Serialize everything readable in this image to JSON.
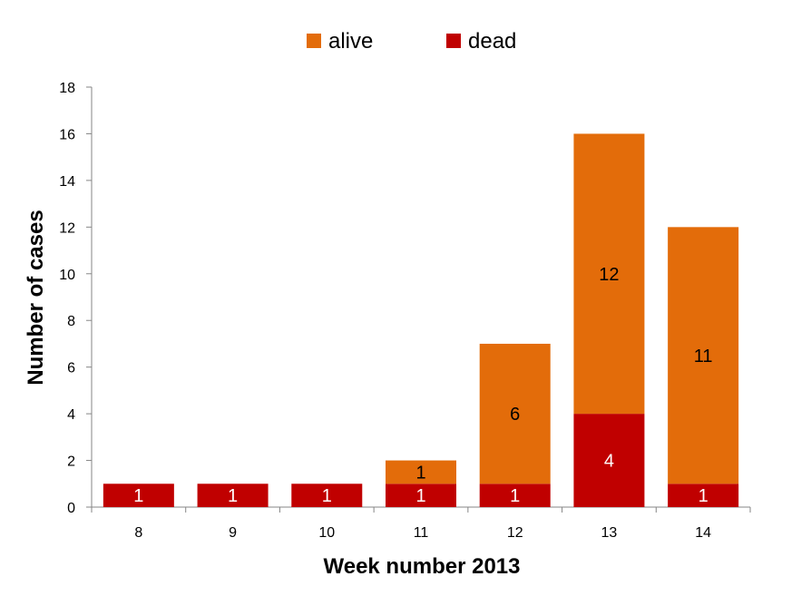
{
  "chart_data": {
    "type": "bar",
    "stacked": true,
    "title": "",
    "xlabel": "Week number 2013",
    "ylabel": "Number of cases",
    "categories": [
      "8",
      "9",
      "10",
      "11",
      "12",
      "13",
      "14"
    ],
    "ylim": [
      0,
      18
    ],
    "yticks": [
      0,
      2,
      4,
      6,
      8,
      10,
      12,
      14,
      16,
      18
    ],
    "grid": false,
    "legend_position": "top",
    "series": [
      {
        "name": "dead",
        "color": "#C00000",
        "label_color": "#FFFFFF",
        "values": [
          1,
          1,
          1,
          1,
          1,
          4,
          1
        ]
      },
      {
        "name": "alive",
        "color": "#E36C0A",
        "label_color": "#000000",
        "values": [
          0,
          0,
          0,
          1,
          6,
          12,
          11
        ]
      }
    ],
    "legend_order": [
      "alive",
      "dead"
    ]
  }
}
